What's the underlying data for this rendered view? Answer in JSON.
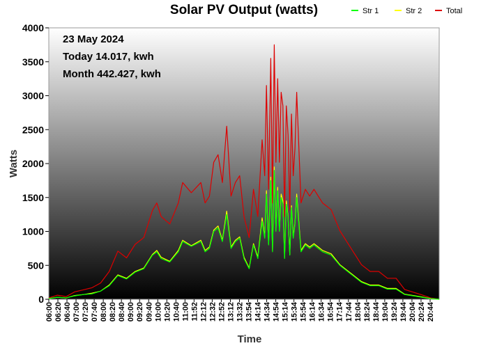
{
  "chart_data": {
    "type": "line",
    "title": "Solar PV Output (watts)",
    "xlabel": "Time",
    "ylabel": "Watts",
    "ylim": [
      0,
      4000
    ],
    "yticks": [
      0,
      500,
      1000,
      1500,
      2000,
      2500,
      3000,
      3500,
      4000
    ],
    "xlim": [
      "06:00",
      "21:04"
    ],
    "xticks": [
      "06:00",
      "06:20",
      "06:40",
      "07:00",
      "07:20",
      "07:40",
      "08:00",
      "08:20",
      "08:40",
      "09:00",
      "09:20",
      "09:40",
      "10:00",
      "10:20",
      "10:40",
      "11:00",
      "11:52",
      "12:12",
      "12:32",
      "12:52",
      "13:12",
      "13:32",
      "13:54",
      "14:14",
      "14:34",
      "14:54",
      "15:14",
      "15:34",
      "15:54",
      "16:14",
      "16:34",
      "16:54",
      "17:14",
      "17:44",
      "18:04",
      "18:24",
      "18:44",
      "19:04",
      "19:24",
      "19:44",
      "20:04",
      "20:24",
      "20:44"
    ],
    "grid": false,
    "legend_position": "top-right",
    "annotations": {
      "date": "23 May 2024",
      "today": "Today 14.017, kwh",
      "month": "Month 442.427, kwh"
    },
    "x": [
      "06:00",
      "06:20",
      "06:40",
      "07:00",
      "07:20",
      "07:40",
      "08:00",
      "08:20",
      "08:40",
      "09:00",
      "09:20",
      "09:40",
      "10:00",
      "10:10",
      "10:20",
      "10:40",
      "11:00",
      "11:10",
      "11:30",
      "11:52",
      "12:02",
      "12:12",
      "12:22",
      "12:32",
      "12:42",
      "12:52",
      "13:02",
      "13:12",
      "13:22",
      "13:32",
      "13:44",
      "13:54",
      "14:04",
      "14:14",
      "14:20",
      "14:24",
      "14:29",
      "14:34",
      "14:38",
      "14:42",
      "14:46",
      "14:50",
      "14:54",
      "14:58",
      "15:02",
      "15:06",
      "15:10",
      "15:14",
      "15:18",
      "15:22",
      "15:26",
      "15:30",
      "15:34",
      "15:44",
      "15:54",
      "16:04",
      "16:14",
      "16:24",
      "16:34",
      "16:54",
      "17:14",
      "17:44",
      "18:04",
      "18:24",
      "18:44",
      "19:04",
      "19:24",
      "19:44",
      "20:04",
      "20:24",
      "20:44",
      "21:04"
    ],
    "series": [
      {
        "name": "Str 1",
        "color": "#00ff00",
        "values": [
          10,
          30,
          20,
          50,
          70,
          80,
          120,
          200,
          350,
          300,
          400,
          450,
          650,
          700,
          600,
          550,
          700,
          850,
          780,
          850,
          700,
          750,
          1000,
          1050,
          850,
          1250,
          750,
          850,
          900,
          600,
          450,
          800,
          600,
          1150,
          900,
          1550,
          800,
          1750,
          700,
          1900,
          1000,
          1600,
          1000,
          1500,
          1400,
          600,
          1400,
          1200,
          650,
          1350,
          900,
          1100,
          1500,
          700,
          800,
          750,
          800,
          750,
          700,
          650,
          500,
          350,
          250,
          200,
          200,
          150,
          150,
          70,
          50,
          30,
          10,
          0
        ]
      },
      {
        "name": "Str 2",
        "color": "#ffff00",
        "values": [
          10,
          30,
          20,
          55,
          70,
          90,
          120,
          210,
          360,
          310,
          410,
          460,
          660,
          720,
          620,
          560,
          720,
          870,
          790,
          870,
          720,
          770,
          1020,
          1080,
          870,
          1300,
          770,
          870,
          920,
          620,
          460,
          820,
          620,
          1200,
          920,
          1600,
          820,
          1800,
          720,
          1950,
          1020,
          1650,
          1020,
          1550,
          1450,
          620,
          1450,
          1220,
          660,
          1380,
          920,
          1120,
          1550,
          720,
          820,
          770,
          820,
          770,
          720,
          670,
          510,
          360,
          260,
          210,
          210,
          160,
          160,
          75,
          55,
          35,
          10,
          0
        ]
      },
      {
        "name": "Total",
        "color": "#dd0000",
        "values": [
          20,
          60,
          40,
          110,
          140,
          170,
          240,
          410,
          710,
          610,
          810,
          910,
          1310,
          1420,
          1220,
          1110,
          1420,
          1720,
          1570,
          1720,
          1420,
          1520,
          2020,
          2130,
          1720,
          2550,
          1520,
          1720,
          1820,
          1220,
          910,
          1620,
          1220,
          2350,
          1820,
          3150,
          1620,
          3550,
          1420,
          3750,
          2020,
          3250,
          2020,
          3050,
          2850,
          1220,
          2850,
          2420,
          1310,
          2730,
          1820,
          2220,
          3050,
          1420,
          1620,
          1520,
          1620,
          1520,
          1420,
          1320,
          1010,
          710,
          510,
          410,
          410,
          310,
          310,
          145,
          105,
          65,
          20,
          0
        ]
      }
    ]
  }
}
